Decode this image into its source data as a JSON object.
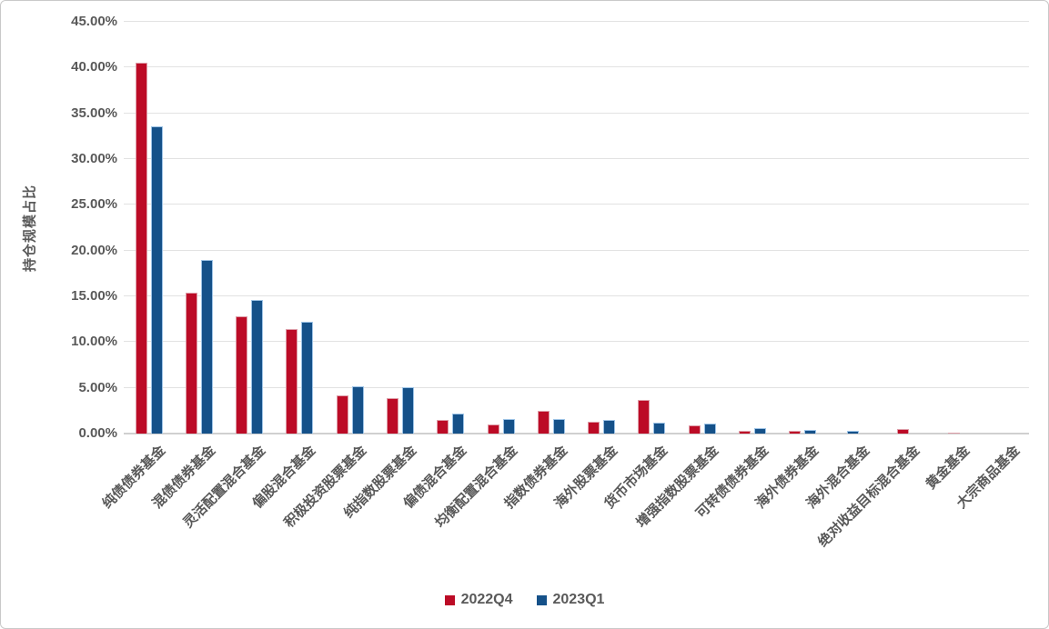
{
  "chart_data": {
    "type": "bar",
    "title": "",
    "xlabel": "",
    "ylabel": "持仓规模占比",
    "ylim": [
      0,
      45
    ],
    "ytick_step": 5,
    "ytick_labels": [
      "0.00%",
      "5.00%",
      "10.00%",
      "15.00%",
      "20.00%",
      "25.00%",
      "30.00%",
      "35.00%",
      "40.00%",
      "45.00%"
    ],
    "grid": true,
    "legend_position": "bottom",
    "categories": [
      "纯债债券基金",
      "混债债券基金",
      "灵活配置混合基金",
      "偏股混合基金",
      "积极投资股票基金",
      "纯指数股票基金",
      "偏债混合基金",
      "均衡配置混合基金",
      "指数债券基金",
      "海外股票基金",
      "货币市场基金",
      "增强指数股票基金",
      "可转债债券基金",
      "海外债券基金",
      "海外混合基金",
      "绝对收益目标混合基金",
      "黄金基金",
      "大宗商品基金"
    ],
    "series": [
      {
        "name": "2022Q4",
        "color": "#bc0b26",
        "border_color": "#de9da8",
        "values": [
          40.5,
          15.4,
          12.8,
          11.4,
          4.2,
          3.9,
          1.5,
          1.0,
          2.5,
          1.3,
          3.7,
          0.9,
          0.25,
          0.25,
          0.03,
          0.45,
          0.15,
          0.01
        ]
      },
      {
        "name": "2023Q1",
        "color": "#155189",
        "border_color": "#9dc3e6",
        "values": [
          33.6,
          19.0,
          14.6,
          12.2,
          5.2,
          5.1,
          2.2,
          1.6,
          1.6,
          1.5,
          1.2,
          1.1,
          0.6,
          0.4,
          0.3,
          0.03,
          0.03,
          0.01
        ]
      }
    ],
    "colors": {
      "grid": "#e2e2e2",
      "axis": "#d0d0d0",
      "text": "#595959",
      "background": "#ffffff"
    }
  }
}
